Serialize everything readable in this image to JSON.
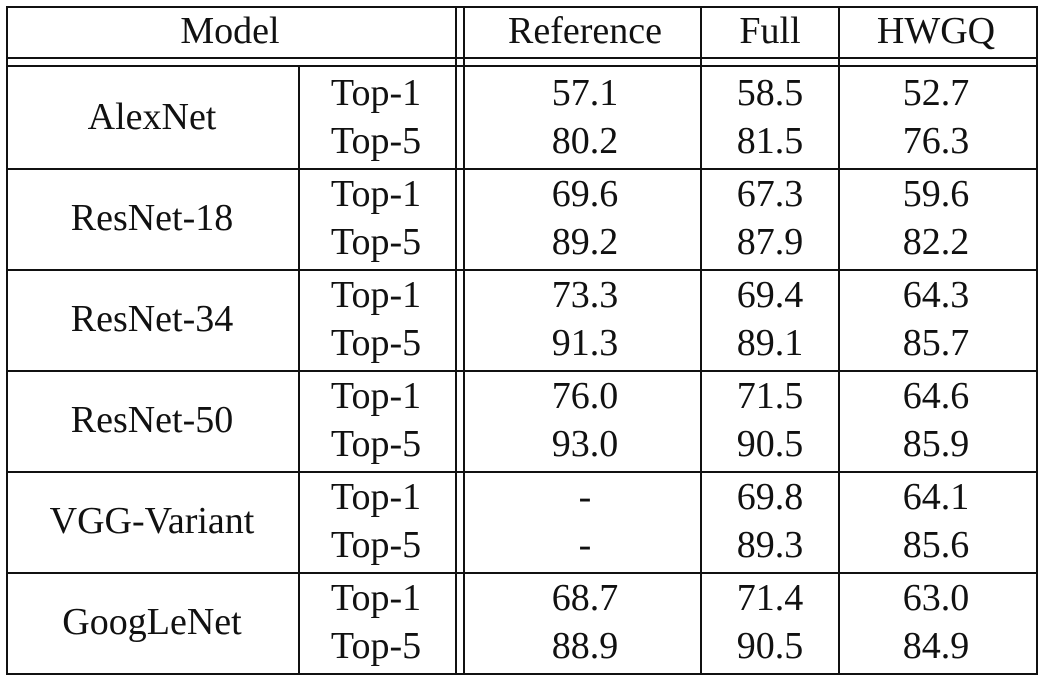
{
  "table": {
    "header": [
      "Model",
      "Reference",
      "Full",
      "HWGQ"
    ],
    "rows": [
      {
        "model": "AlexNet",
        "metrics": [
          {
            "label": "Top-1",
            "values": [
              "57.1",
              "58.5",
              "52.7"
            ]
          },
          {
            "label": "Top-5",
            "values": [
              "80.2",
              "81.5",
              "76.3"
            ]
          }
        ]
      },
      {
        "model": "ResNet-18",
        "metrics": [
          {
            "label": "Top-1",
            "values": [
              "69.6",
              "67.3",
              "59.6"
            ]
          },
          {
            "label": "Top-5",
            "values": [
              "89.2",
              "87.9",
              "82.2"
            ]
          }
        ]
      },
      {
        "model": "ResNet-34",
        "metrics": [
          {
            "label": "Top-1",
            "values": [
              "73.3",
              "69.4",
              "64.3"
            ]
          },
          {
            "label": "Top-5",
            "values": [
              "91.3",
              "89.1",
              "85.7"
            ]
          }
        ]
      },
      {
        "model": "ResNet-50",
        "metrics": [
          {
            "label": "Top-1",
            "values": [
              "76.0",
              "71.5",
              "64.6"
            ]
          },
          {
            "label": "Top-5",
            "values": [
              "93.0",
              "90.5",
              "85.9"
            ]
          }
        ]
      },
      {
        "model": "VGG-Variant",
        "metrics": [
          {
            "label": "Top-1",
            "values": [
              "-",
              "69.8",
              "64.1"
            ]
          },
          {
            "label": "Top-5",
            "values": [
              "-",
              "89.3",
              "85.6"
            ]
          }
        ]
      },
      {
        "model": "GoogLeNet",
        "metrics": [
          {
            "label": "Top-1",
            "values": [
              "68.7",
              "71.4",
              "63.0"
            ]
          },
          {
            "label": "Top-5",
            "values": [
              "88.9",
              "90.5",
              "84.9"
            ]
          }
        ]
      }
    ]
  }
}
